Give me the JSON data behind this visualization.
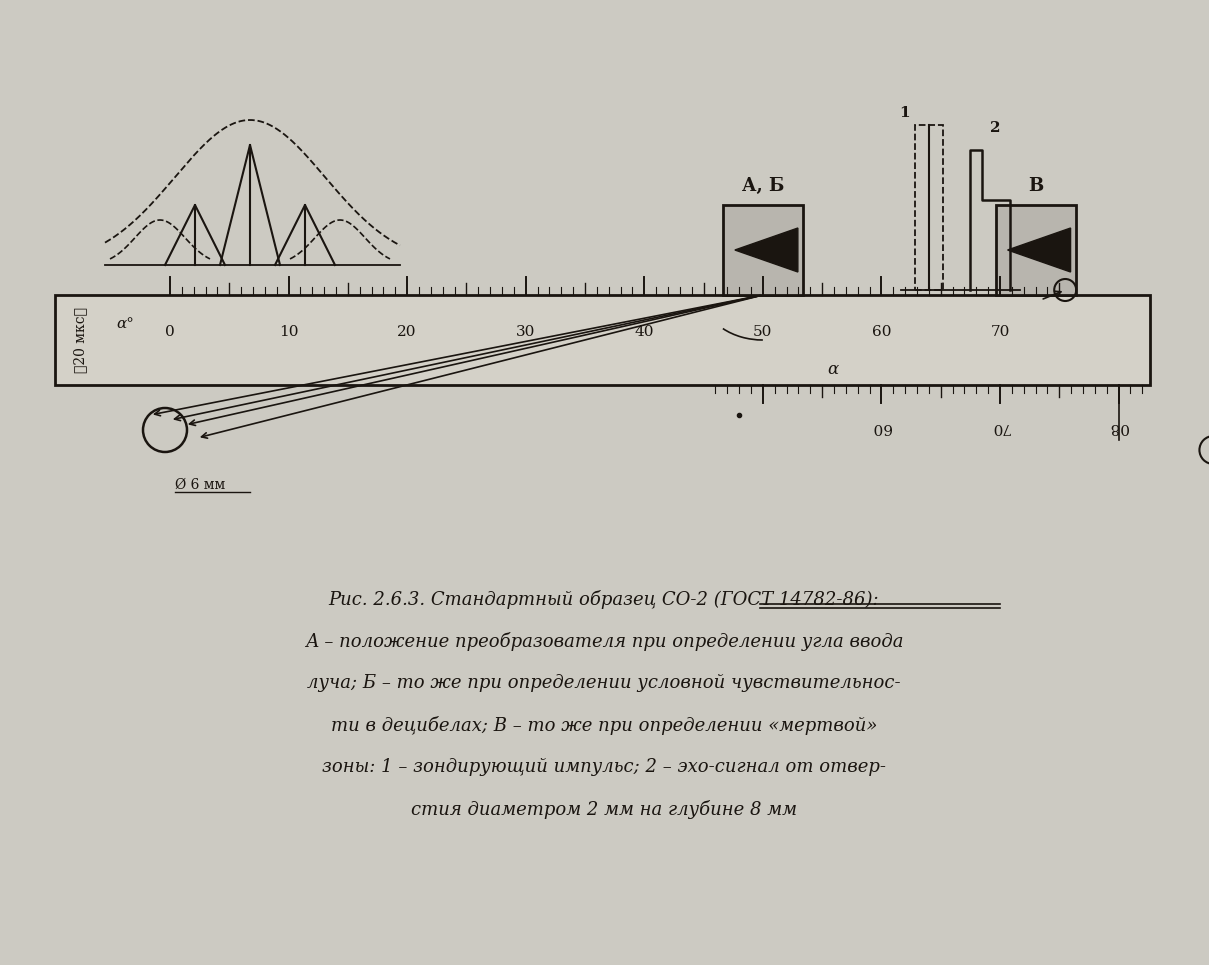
{
  "bg_color": "#cccac2",
  "ruler_color": "#1a1510",
  "fig_width": 12.09,
  "fig_height": 9.65,
  "caption_lines": [
    "Рис. 2.6.3. Стандартный образец СО-2 (ГОСТ 14782-86):",
    "А – положение преобразователя при определении угла ввода",
    "луча; Б – то же при определении условной чувствительнос-",
    "ти в децибелах; В – то же при определении «мертвой»",
    "зоны: 1 – зондирующий импульс; 2 – эхо-сигнал от отвер-",
    "стия диаметром 2 мм на глубине 8 мм"
  ]
}
